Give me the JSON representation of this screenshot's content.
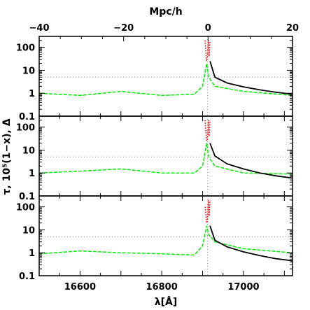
{
  "chart_data": {
    "type": "line",
    "xlabel": "λ[Å]",
    "ylabel": "τ, 10⁵(1−x), Δ",
    "top_axis_label": "Mpc/h",
    "xlim": [
      16500,
      17120
    ],
    "x_ticks": [
      "16600",
      "16800",
      "17000"
    ],
    "top_xlim": [
      -40,
      20
    ],
    "top_ticks": [
      "−40",
      "−20",
      "0",
      "20"
    ],
    "y_scale": "log",
    "ylim": [
      0.1,
      300
    ],
    "y_ticks": [
      "0.1",
      "1",
      "10",
      "100"
    ],
    "reference_lines": {
      "x_dotted": 16912,
      "y_dotted": 5
    },
    "colors": {
      "delta": "#00ee00",
      "neutral_fraction": "#ff0000",
      "tau": "#000000",
      "guides": "#999999"
    },
    "panels": [
      {
        "series": [
          {
            "style": "dashed-green",
            "x": [
              16500,
              16600,
              16700,
              16800,
              16880,
              16900,
              16910,
              16915,
              16930,
              17000,
              17120
            ],
            "y": [
              1.0,
              0.8,
              1.2,
              0.8,
              0.9,
              2.0,
              20.0,
              5.0,
              2.0,
              1.2,
              0.8
            ]
          },
          {
            "style": "dotted-red",
            "x": [
              16906,
              16908,
              16910,
              16912,
              16914,
              16916,
              16918
            ],
            "y": [
              200,
              60,
              25,
              40,
              200,
              40,
              200
            ]
          },
          {
            "style": "solid-black",
            "x": [
              16918,
              16930,
              16960,
              17000,
              17040,
              17080,
              17120
            ],
            "y": [
              25,
              5.0,
              2.8,
              1.9,
              1.4,
              1.1,
              0.9
            ]
          }
        ]
      },
      {
        "series": [
          {
            "style": "dashed-green",
            "x": [
              16500,
              16600,
              16700,
              16800,
              16880,
              16900,
              16910,
              16915,
              16930,
              17000,
              17120
            ],
            "y": [
              1.0,
              1.2,
              1.5,
              1.0,
              1.0,
              2.0,
              20.0,
              5.0,
              2.0,
              1.0,
              0.9
            ]
          },
          {
            "style": "dotted-red",
            "x": [
              16906,
              16908,
              16910,
              16912,
              16914,
              16916,
              16918
            ],
            "y": [
              200,
              60,
              25,
              30,
              200,
              40,
              200
            ]
          },
          {
            "style": "solid-black",
            "x": [
              16918,
              16930,
              16960,
              17000,
              17040,
              17080,
              17120
            ],
            "y": [
              20,
              5.5,
              2.5,
              1.5,
              1.0,
              0.75,
              0.6
            ]
          }
        ]
      },
      {
        "series": [
          {
            "style": "dashed-green",
            "x": [
              16500,
              16600,
              16700,
              16800,
              16880,
              16900,
              16910,
              16915,
              16930,
              17000,
              17120
            ],
            "y": [
              0.9,
              1.2,
              1.0,
              0.9,
              0.8,
              2.0,
              15.0,
              6.0,
              3.0,
              1.5,
              1.0
            ]
          },
          {
            "style": "dotted-red",
            "x": [
              16906,
              16908,
              16910,
              16912,
              16914,
              16916,
              16918
            ],
            "y": [
              100,
              50,
              20,
              25,
              200,
              40,
              200
            ]
          },
          {
            "style": "solid-black",
            "x": [
              16918,
              16930,
              16960,
              17000,
              17040,
              17080,
              17120
            ],
            "y": [
              15,
              3.5,
              1.8,
              1.1,
              0.75,
              0.55,
              0.45
            ]
          }
        ]
      }
    ]
  }
}
